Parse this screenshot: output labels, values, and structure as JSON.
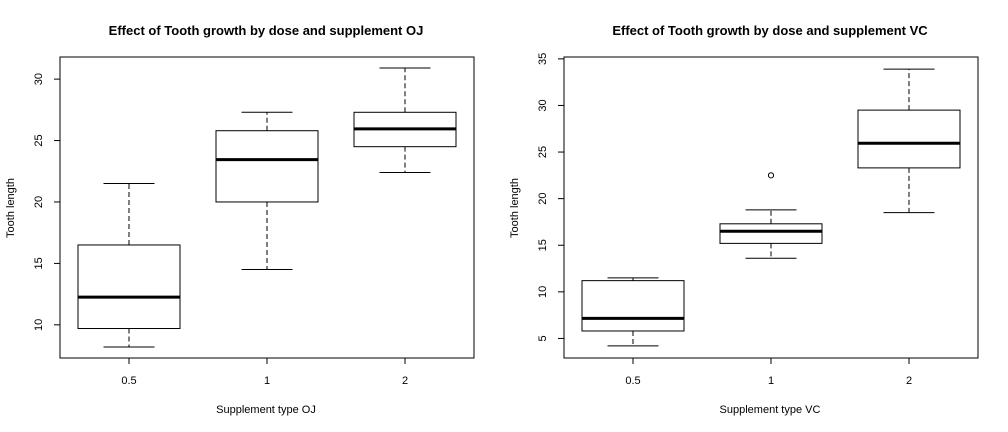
{
  "chart_data": [
    {
      "type": "boxplot",
      "title": "Effect of Tooth growth by dose and supplement OJ",
      "xlabel": "Supplement type OJ",
      "ylabel": "Tooth length",
      "categories": [
        "0.5",
        "1",
        "2"
      ],
      "boxes": [
        {
          "min": 8.2,
          "q1": 9.7,
          "median": 12.25,
          "q3": 16.5,
          "max": 21.5,
          "outliers": []
        },
        {
          "min": 14.5,
          "q1": 20.0,
          "median": 23.45,
          "q3": 25.8,
          "max": 27.3,
          "outliers": []
        },
        {
          "min": 22.4,
          "q1": 24.5,
          "median": 25.95,
          "q3": 27.3,
          "max": 30.9,
          "outliers": []
        }
      ],
      "yticks": [
        10,
        15,
        20,
        25,
        30
      ],
      "ylim": [
        7.3,
        31.8
      ]
    },
    {
      "type": "boxplot",
      "title": "Effect of Tooth growth by dose and supplement VC",
      "xlabel": "Supplement type VC",
      "ylabel": "Tooth length",
      "categories": [
        "0.5",
        "1",
        "2"
      ],
      "boxes": [
        {
          "min": 4.2,
          "q1": 5.8,
          "median": 7.15,
          "q3": 11.2,
          "max": 11.5,
          "outliers": []
        },
        {
          "min": 13.6,
          "q1": 15.2,
          "median": 16.5,
          "q3": 17.3,
          "max": 18.8,
          "outliers": [
            22.5
          ]
        },
        {
          "min": 18.5,
          "q1": 23.3,
          "median": 25.95,
          "q3": 29.5,
          "max": 33.9,
          "outliers": []
        }
      ],
      "yticks": [
        5,
        10,
        15,
        20,
        25,
        30,
        35
      ],
      "ylim": [
        2.9,
        35.2
      ]
    }
  ]
}
